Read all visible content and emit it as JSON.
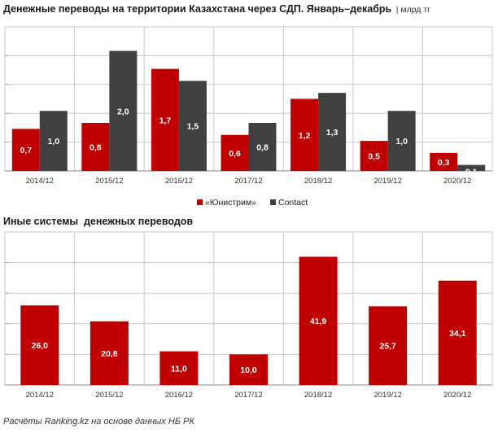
{
  "title1_main": "Денежные переводы на территории Казахстана через СДП. Январь–декабрь",
  "title1_unit": "| млрд тг",
  "title2": "Иные системы  денежных переводов",
  "source": "Расчёты Ranking.kz на основе данных НБ РК",
  "colors": {
    "unistream": "#c00000",
    "contact": "#404040",
    "other": "#c00000",
    "grid": "#c8c8c8",
    "plot_bg": "#ffffff"
  },
  "chart_data": [
    {
      "type": "bar",
      "title": "Денежные переводы на территории Казахстана через СДП. Январь–декабрь",
      "unit": "млрд тг",
      "categories": [
        "2014/12",
        "2015/12",
        "2016/12",
        "2017/12",
        "2018/12",
        "2019/12",
        "2020/12"
      ],
      "series": [
        {
          "name": "«Юнистрим»",
          "values": [
            0.7,
            0.8,
            1.7,
            0.6,
            1.2,
            0.5,
            0.3
          ],
          "labels": [
            "0,7",
            "0,8",
            "1,7",
            "0,6",
            "1,2",
            "0,5",
            "0,3"
          ]
        },
        {
          "name": "Contact",
          "values": [
            1.0,
            2.0,
            1.5,
            0.8,
            1.3,
            1.0,
            0.1
          ],
          "labels": [
            "1,0",
            "2,0",
            "1,5",
            "0,8",
            "1,3",
            "1,0",
            "0,1"
          ]
        }
      ],
      "ylim": [
        0,
        2.4
      ],
      "grid": true,
      "legend": "bottom-center"
    },
    {
      "type": "bar",
      "title": "Иные системы  денежных переводов",
      "categories": [
        "2014/12",
        "2015/12",
        "2016/12",
        "2017/12",
        "2018/12",
        "2019/12",
        "2020/12"
      ],
      "series": [
        {
          "values": [
            26.0,
            20.8,
            11.0,
            10.0,
            41.9,
            25.7,
            34.1
          ],
          "labels": [
            "26,0",
            "20,8",
            "11,0",
            "10,0",
            "41,9",
            "25,7",
            "34,1"
          ]
        }
      ],
      "ylim": [
        0,
        50
      ],
      "grid": true
    }
  ]
}
